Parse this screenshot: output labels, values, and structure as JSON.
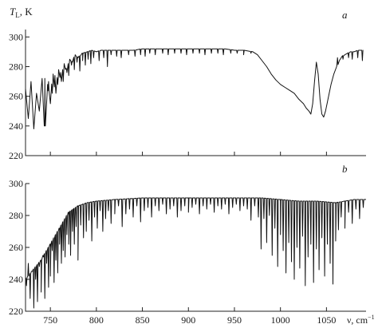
{
  "chart_data": [
    {
      "type": "line",
      "panel_label": "a",
      "ylabel_symbol": "T",
      "ylabel_subscript": "L",
      "ylabel_unit": ", K",
      "xlim": [
        723,
        1093
      ],
      "ylim": [
        220,
        305
      ],
      "yticks": [
        220,
        240,
        260,
        280,
        300
      ],
      "ytick_labels": [
        "220",
        "240",
        "260",
        "280",
        "300"
      ],
      "xticks": [
        750,
        800,
        850,
        900,
        950,
        1000,
        1050
      ],
      "x_tick_labels_shown": false,
      "series": [
        {
          "x": [
            723,
            726,
            729,
            732,
            735,
            738,
            741,
            744,
            747,
            750,
            753,
            756,
            759,
            762,
            765,
            768,
            771,
            774,
            777,
            780,
            785,
            790,
            795,
            800,
            805,
            810,
            815,
            820,
            830,
            840,
            850,
            860,
            870,
            880,
            890,
            900,
            910,
            920,
            930,
            940,
            950,
            960,
            970,
            975,
            980,
            985,
            990,
            995,
            1000,
            1005,
            1010,
            1015,
            1020,
            1025,
            1028,
            1031,
            1033,
            1035,
            1037,
            1039,
            1041,
            1043,
            1045,
            1047,
            1049,
            1051,
            1053,
            1055,
            1058,
            1061,
            1064,
            1067,
            1070,
            1073,
            1076,
            1080,
            1085,
            1090
          ],
          "y": [
            265,
            245,
            270,
            238,
            262,
            250,
            272,
            240,
            268,
            255,
            275,
            262,
            278,
            270,
            282,
            276,
            285,
            283,
            288,
            286,
            289,
            290,
            291,
            290,
            291,
            291,
            291,
            291,
            291,
            291,
            292,
            292,
            292,
            292,
            292,
            292,
            292,
            292,
            292,
            292,
            291,
            291,
            290,
            288,
            284,
            280,
            275,
            271,
            268,
            266,
            264,
            262,
            258,
            255,
            252,
            250,
            248,
            255,
            270,
            283,
            275,
            258,
            248,
            246,
            250,
            256,
            262,
            268,
            275,
            280,
            284,
            287,
            288,
            289,
            290,
            290,
            291,
            291
          ]
        }
      ],
      "absorption_lines": [
        [
          744,
          272
        ],
        [
          748,
          270
        ],
        [
          752,
          262
        ],
        [
          755,
          274
        ],
        [
          758,
          268
        ],
        [
          761,
          276
        ],
        [
          764,
          270
        ],
        [
          767,
          279
        ],
        [
          770,
          274
        ],
        [
          773,
          281
        ],
        [
          776,
          278
        ],
        [
          779,
          283
        ],
        [
          782,
          277
        ],
        [
          785,
          284
        ],
        [
          788,
          281
        ],
        [
          791,
          285
        ],
        [
          794,
          282
        ],
        [
          797,
          286
        ],
        [
          803,
          284
        ],
        [
          808,
          286
        ],
        [
          812,
          280
        ],
        [
          816,
          288
        ],
        [
          822,
          287
        ],
        [
          827,
          286
        ],
        [
          835,
          288
        ],
        [
          842,
          287
        ],
        [
          848,
          288
        ],
        [
          853,
          287
        ],
        [
          858,
          289
        ],
        [
          864,
          288
        ],
        [
          872,
          289
        ],
        [
          878,
          288
        ],
        [
          885,
          289
        ],
        [
          892,
          289
        ],
        [
          898,
          288
        ],
        [
          905,
          289
        ],
        [
          912,
          289
        ],
        [
          918,
          288
        ],
        [
          925,
          289
        ],
        [
          932,
          289
        ],
        [
          938,
          288
        ],
        [
          946,
          289
        ],
        [
          953,
          289
        ],
        [
          960,
          288
        ],
        [
          968,
          289
        ],
        [
          1062,
          286
        ],
        [
          1068,
          285
        ],
        [
          1074,
          286
        ],
        [
          1078,
          285
        ],
        [
          1084,
          286
        ],
        [
          1089,
          284
        ]
      ]
    },
    {
      "type": "line",
      "panel_label": "b",
      "xlabel": "ν, cm",
      "xlabel_superscript": "−1",
      "xlim": [
        723,
        1093
      ],
      "ylim": [
        220,
        300
      ],
      "yticks": [
        220,
        240,
        260,
        280,
        300
      ],
      "ytick_labels": [
        "220",
        "240",
        "260",
        "280",
        "300"
      ],
      "xticks": [
        750,
        800,
        850,
        900,
        950,
        1000,
        1050
      ],
      "xtick_labels": [
        "750",
        "800",
        "850",
        "900",
        "950",
        "1000",
        "1050"
      ],
      "series": [
        {
          "x": [
            723,
            730,
            740,
            750,
            760,
            770,
            780,
            790,
            800,
            820,
            850,
            900,
            950,
            980,
            1000,
            1020,
            1040,
            1060,
            1070,
            1080,
            1093
          ],
          "y": [
            240,
            245,
            252,
            262,
            272,
            282,
            286,
            288,
            289,
            290,
            291,
            291,
            291,
            291,
            290,
            289,
            289,
            288,
            289,
            290,
            290
          ]
        }
      ],
      "absorption_lines": [
        [
          724,
          236
        ],
        [
          726,
          250
        ],
        [
          728,
          228
        ],
        [
          730,
          245
        ],
        [
          732,
          222
        ],
        [
          734,
          240
        ],
        [
          736,
          226
        ],
        [
          738,
          248
        ],
        [
          740,
          232
        ],
        [
          742,
          255
        ],
        [
          744,
          228
        ],
        [
          746,
          250
        ],
        [
          748,
          235
        ],
        [
          750,
          242
        ],
        [
          752,
          258
        ],
        [
          754,
          238
        ],
        [
          756,
          252
        ],
        [
          758,
          244
        ],
        [
          760,
          262
        ],
        [
          762,
          250
        ],
        [
          764,
          258
        ],
        [
          766,
          254
        ],
        [
          768,
          268
        ],
        [
          770,
          262
        ],
        [
          772,
          255
        ],
        [
          774,
          270
        ],
        [
          776,
          262
        ],
        [
          778,
          273
        ],
        [
          780,
          252
        ],
        [
          783,
          274
        ],
        [
          786,
          266
        ],
        [
          789,
          270
        ],
        [
          792,
          277
        ],
        [
          795,
          264
        ],
        [
          798,
          279
        ],
        [
          801,
          272
        ],
        [
          804,
          283
        ],
        [
          807,
          270
        ],
        [
          810,
          278
        ],
        [
          813,
          283
        ],
        [
          816,
          275
        ],
        [
          820,
          281
        ],
        [
          824,
          286
        ],
        [
          828,
          273
        ],
        [
          832,
          281
        ],
        [
          836,
          284
        ],
        [
          840,
          279
        ],
        [
          844,
          286
        ],
        [
          848,
          276
        ],
        [
          852,
          283
        ],
        [
          856,
          285
        ],
        [
          860,
          279
        ],
        [
          864,
          286
        ],
        [
          868,
          283
        ],
        [
          872,
          287
        ],
        [
          876,
          281
        ],
        [
          880,
          284
        ],
        [
          884,
          286
        ],
        [
          888,
          279
        ],
        [
          892,
          283
        ],
        [
          896,
          286
        ],
        [
          900,
          282
        ],
        [
          904,
          285
        ],
        [
          908,
          287
        ],
        [
          912,
          281
        ],
        [
          916,
          286
        ],
        [
          920,
          284
        ],
        [
          924,
          287
        ],
        [
          928,
          282
        ],
        [
          932,
          286
        ],
        [
          936,
          284
        ],
        [
          940,
          287
        ],
        [
          944,
          281
        ],
        [
          948,
          285
        ],
        [
          952,
          287
        ],
        [
          956,
          283
        ],
        [
          960,
          286
        ],
        [
          964,
          284
        ],
        [
          968,
          277
        ],
        [
          972,
          286
        ],
        [
          976,
          279
        ],
        [
          979,
          259
        ],
        [
          982,
          278
        ],
        [
          985,
          263
        ],
        [
          988,
          280
        ],
        [
          991,
          255
        ],
        [
          994,
          272
        ],
        [
          997,
          248
        ],
        [
          1000,
          268
        ],
        [
          1003,
          258
        ],
        [
          1006,
          244
        ],
        [
          1009,
          263
        ],
        [
          1012,
          251
        ],
        [
          1015,
          240
        ],
        [
          1018,
          260
        ],
        [
          1021,
          247
        ],
        [
          1024,
          267
        ],
        [
          1027,
          236
        ],
        [
          1030,
          254
        ],
        [
          1033,
          262
        ],
        [
          1036,
          238
        ],
        [
          1039,
          259
        ],
        [
          1042,
          246
        ],
        [
          1045,
          266
        ],
        [
          1048,
          242
        ],
        [
          1051,
          262
        ],
        [
          1054,
          250
        ],
        [
          1057,
          237
        ],
        [
          1060,
          264
        ],
        [
          1063,
          271
        ],
        [
          1066,
          279
        ],
        [
          1070,
          272
        ],
        [
          1074,
          282
        ],
        [
          1078,
          275
        ],
        [
          1082,
          284
        ],
        [
          1086,
          278
        ],
        [
          1090,
          285
        ]
      ]
    }
  ]
}
